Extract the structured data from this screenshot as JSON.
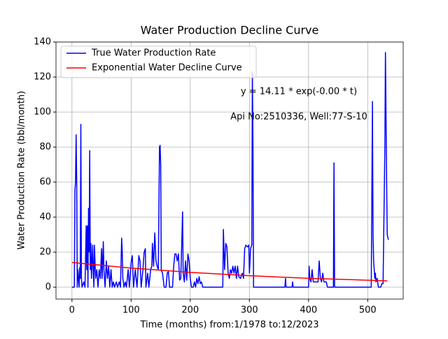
{
  "chart_data": {
    "type": "line",
    "title": "Water Production Decline Curve",
    "xlabel": "Time (months) from:1/1978 to:12/2023",
    "ylabel": "Water Production Rate (bbl/month)",
    "annotations": [
      "y = 14.11 * exp(-0.00 * t)",
      "Api No:2510336, Well:77-S-10"
    ],
    "series": [
      {
        "name": "True Water Production Rate",
        "color": "#0000ff",
        "x": [
          0,
          4,
          5,
          6,
          7,
          8,
          9,
          10,
          12,
          13,
          14,
          15,
          16,
          17,
          20,
          22,
          24,
          25,
          26,
          27,
          28,
          29,
          30,
          31,
          32,
          33,
          35,
          36,
          37,
          38,
          39,
          40,
          42,
          44,
          46,
          48,
          50,
          51,
          53,
          54,
          56,
          58,
          60,
          62,
          64,
          66,
          68,
          70,
          72,
          75,
          77,
          80,
          82,
          84,
          85,
          86,
          88,
          90,
          92,
          95,
          97,
          100,
          102,
          104,
          107,
          110,
          113,
          115,
          117,
          120,
          122,
          124,
          125,
          128,
          130,
          133,
          135,
          136,
          138,
          140,
          142,
          144,
          146,
          148,
          149,
          150,
          151,
          153,
          156,
          159,
          161,
          163,
          165,
          170,
          172,
          174,
          176,
          178,
          180,
          182,
          184,
          187,
          188,
          190,
          192,
          194,
          196,
          198,
          200,
          202,
          205,
          207,
          209,
          211,
          213,
          215,
          217,
          219,
          221,
          225,
          255,
          256,
          258,
          260,
          262,
          264,
          266,
          268,
          270,
          272,
          274,
          276,
          278,
          280,
          282,
          285,
          288,
          290,
          292,
          294,
          297,
          299,
          300,
          302,
          304,
          305,
          306,
          307,
          360,
          361,
          362,
          372,
          373,
          374,
          400,
          401,
          402,
          404,
          406,
          408,
          416,
          418,
          420,
          422,
          424,
          426,
          430,
          432,
          442,
          443,
          444,
          506,
          508,
          509,
          510,
          512,
          513,
          514,
          516,
          518,
          522,
          524,
          526,
          529,
          530,
          532,
          533,
          535
        ],
        "values": [
          0,
          0,
          55,
          60,
          87,
          60,
          0,
          10,
          0,
          11,
          5,
          93,
          5,
          0,
          3,
          0,
          35,
          10,
          35,
          0,
          45,
          20,
          78,
          10,
          25,
          5,
          24,
          10,
          0,
          24,
          14,
          5,
          10,
          0,
          10,
          5,
          22,
          5,
          26,
          10,
          0,
          15,
          5,
          12,
          0,
          10,
          0,
          3,
          0,
          3,
          0,
          3,
          0,
          28,
          20,
          5,
          0,
          3,
          0,
          10,
          0,
          14,
          18,
          0,
          10,
          0,
          18,
          15,
          0,
          10,
          20,
          22,
          0,
          8,
          0,
          10,
          12,
          25,
          12,
          31,
          15,
          12,
          10,
          80,
          81,
          70,
          10,
          8,
          0,
          0,
          8,
          9,
          0,
          0,
          12,
          19,
          19,
          15,
          19,
          4,
          5,
          43,
          8,
          3,
          15,
          4,
          19,
          15,
          5,
          0,
          0,
          3,
          0,
          5,
          2,
          6,
          2,
          3,
          0,
          0,
          0,
          33,
          10,
          25,
          23,
          8,
          5,
          10,
          8,
          12,
          8,
          12,
          5,
          12,
          6,
          5,
          8,
          5,
          22,
          24,
          23,
          24,
          8,
          22,
          24,
          123,
          80,
          0,
          0,
          5,
          0,
          0,
          3,
          0,
          0,
          12,
          5,
          3,
          10,
          3,
          3,
          15,
          5,
          3,
          8,
          3,
          3,
          0,
          0,
          71,
          0,
          0,
          106,
          30,
          15,
          5,
          8,
          3,
          5,
          0,
          0,
          2,
          2,
          80,
          134,
          60,
          30,
          27
        ]
      },
      {
        "name": "Exponential Water Decline Curve",
        "color": "#ff0000",
        "x": [
          0,
          100,
          200,
          300,
          400,
          533
        ],
        "values": [
          14.11,
          10.92,
          8.46,
          6.55,
          5.07,
          3.6
        ]
      }
    ],
    "xlim": [
      -27,
      560
    ],
    "ylim": [
      -6.8,
      140
    ],
    "xticks": [
      0,
      100,
      200,
      300,
      400,
      500
    ],
    "yticks": [
      0,
      20,
      40,
      60,
      80,
      100,
      120,
      140
    ],
    "grid": true,
    "legend": "upper left"
  }
}
